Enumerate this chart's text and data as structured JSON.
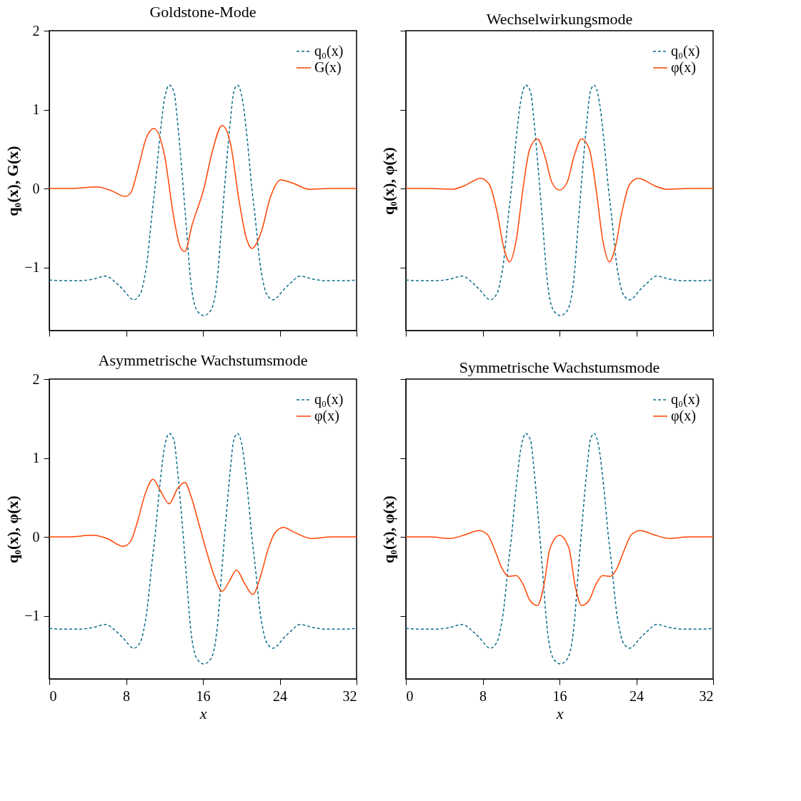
{
  "chart_data": [
    {
      "type": "line",
      "title": "Goldstone-Mode",
      "ylabel": "q₀(x), G(x)",
      "xlim": [
        0,
        32
      ],
      "ylim": [
        -1.8,
        2
      ],
      "xticks": [
        0,
        8,
        16,
        24,
        32
      ],
      "yticks": [
        -1,
        0,
        1,
        2
      ],
      "tick_labels": "y",
      "legend": "top right",
      "grid": false,
      "series": [
        {
          "name": "q₀(x)",
          "color": "#0b6e8c",
          "line_style": "dashed",
          "x": [
            0,
            1.5,
            3,
            4.5,
            5.9,
            6.9,
            7.6,
            8.8,
            9.5,
            9.9,
            10.1,
            10.7,
            11.0,
            11.5,
            11.95,
            12.5,
            13.0,
            13.3,
            13.8,
            14.25,
            14.7,
            15.4,
            16.1,
            16.8,
            17.5,
            17.95,
            18.4,
            18.9,
            19.2,
            19.6,
            20.15,
            20.6,
            21.1,
            21.4,
            22.0,
            22.2,
            22.6,
            23.3,
            24.5,
            25.2,
            26.1,
            27.5,
            29,
            30.5,
            32
          ],
          "values": [
            -1.16,
            -1.17,
            -1.17,
            -1.15,
            -1.11,
            -1.19,
            -1.27,
            -1.41,
            -1.33,
            -1.14,
            -1.0,
            -0.32,
            0,
            0.64,
            1.1,
            1.31,
            1.22,
            0.91,
            0.23,
            -0.45,
            -1.14,
            -1.55,
            -1.61,
            -1.55,
            -1.14,
            -0.45,
            0.23,
            0.91,
            1.22,
            1.31,
            1.1,
            0.64,
            0,
            -0.32,
            -1.0,
            -1.14,
            -1.33,
            -1.41,
            -1.27,
            -1.19,
            -1.11,
            -1.15,
            -1.17,
            -1.17,
            -1.16
          ]
        },
        {
          "name": "G(x)",
          "color": "#ff4500",
          "line_style": "solid",
          "x": [
            0,
            2,
            3.5,
            4.9,
            6.5,
            7.9,
            8.5,
            9.2,
            10.1,
            10.9,
            12.0,
            12.9,
            13.6,
            14.1,
            14.9,
            16.1,
            17.0,
            18.0,
            18.85,
            19.8,
            20.5,
            21.1,
            22.1,
            23.0,
            24.1,
            25.3,
            27.1,
            29.2,
            32
          ],
          "values": [
            0,
            0,
            0.01,
            0.02,
            -0.03,
            -0.1,
            -0.05,
            0.23,
            0.64,
            0.76,
            0.42,
            -0.32,
            -0.73,
            -0.8,
            -0.45,
            0,
            0.48,
            0.8,
            0.58,
            -0.18,
            -0.62,
            -0.76,
            -0.54,
            -0.12,
            0.11,
            0.07,
            -0.01,
            0,
            0
          ]
        }
      ]
    },
    {
      "type": "line",
      "title": "Wechselwirkungsmode",
      "ylabel": "q₀(x), φ(x)",
      "xlim": [
        0,
        32
      ],
      "ylim": [
        -1.8,
        2
      ],
      "xticks": [
        0,
        8,
        16,
        24,
        32
      ],
      "yticks": [
        -1,
        0,
        1,
        2
      ],
      "tick_labels": false,
      "legend": "top right",
      "grid": false,
      "series": [
        {
          "name": "q₀(x)",
          "color": "#0b6e8c",
          "line_style": "dashed",
          "x": [
            0,
            1.5,
            3,
            4.5,
            5.9,
            6.9,
            7.6,
            8.8,
            9.5,
            9.9,
            10.1,
            10.7,
            11.0,
            11.5,
            11.95,
            12.5,
            13.0,
            13.3,
            13.8,
            14.25,
            14.7,
            15.4,
            16.1,
            16.8,
            17.5,
            17.95,
            18.4,
            18.9,
            19.2,
            19.6,
            20.15,
            20.6,
            21.1,
            21.4,
            22.0,
            22.2,
            22.6,
            23.3,
            24.5,
            25.2,
            26.1,
            27.5,
            29,
            30.5,
            32
          ],
          "values": [
            -1.16,
            -1.17,
            -1.17,
            -1.15,
            -1.11,
            -1.19,
            -1.27,
            -1.41,
            -1.33,
            -1.14,
            -1.0,
            -0.32,
            0,
            0.64,
            1.1,
            1.31,
            1.22,
            0.91,
            0.23,
            -0.45,
            -1.14,
            -1.55,
            -1.61,
            -1.55,
            -1.14,
            -0.45,
            0.23,
            0.91,
            1.22,
            1.31,
            1.1,
            0.64,
            0,
            -0.32,
            -1.0,
            -1.14,
            -1.33,
            -1.41,
            -1.27,
            -1.19,
            -1.11,
            -1.15,
            -1.17,
            -1.17,
            -1.16
          ]
        },
        {
          "name": "φ(x)",
          "color": "#ff4500",
          "line_style": "solid",
          "x": [
            0,
            2.5,
            4.8,
            6,
            7.8,
            8.7,
            9.5,
            10.2,
            10.8,
            11.5,
            12.2,
            12.9,
            13.7,
            14.5,
            15.2,
            16.0,
            16.8,
            17.5,
            18.3,
            19.1,
            19.8,
            20.5,
            21.2,
            21.8,
            22.5,
            23.3,
            24.2,
            26,
            27.2,
            29.5,
            32
          ],
          "values": [
            0,
            0,
            -0.01,
            0.03,
            0.13,
            0.05,
            -0.3,
            -0.75,
            -0.93,
            -0.65,
            0,
            0.5,
            0.63,
            0.4,
            0.08,
            -0.02,
            0.08,
            0.4,
            0.63,
            0.5,
            0,
            -0.65,
            -0.93,
            -0.75,
            -0.3,
            0.05,
            0.13,
            0.03,
            -0.01,
            0,
            0
          ]
        }
      ]
    },
    {
      "type": "line",
      "title": "Asymmetrische Wachstumsmode",
      "xlabel": "x",
      "ylabel": "q₀(x), φ(x)",
      "xlim": [
        0,
        32
      ],
      "ylim": [
        -1.8,
        2
      ],
      "xticks": [
        0,
        8,
        16,
        24,
        32
      ],
      "yticks": [
        -1,
        0,
        1,
        2
      ],
      "legend": "top right",
      "grid": false,
      "series": [
        {
          "name": "q₀(x)",
          "color": "#0b6e8c",
          "line_style": "dashed",
          "x": [
            0,
            1.5,
            3,
            4.5,
            5.9,
            6.9,
            7.6,
            8.8,
            9.5,
            9.9,
            10.1,
            10.7,
            11.0,
            11.5,
            11.95,
            12.5,
            13.0,
            13.3,
            13.8,
            14.25,
            14.7,
            15.4,
            16.1,
            16.8,
            17.5,
            17.95,
            18.4,
            18.9,
            19.2,
            19.6,
            20.15,
            20.6,
            21.1,
            21.4,
            22.0,
            22.2,
            22.6,
            23.3,
            24.5,
            25.2,
            26.1,
            27.5,
            29,
            30.5,
            32
          ],
          "values": [
            -1.16,
            -1.17,
            -1.17,
            -1.15,
            -1.11,
            -1.19,
            -1.27,
            -1.41,
            -1.33,
            -1.14,
            -1.0,
            -0.32,
            0,
            0.64,
            1.1,
            1.31,
            1.22,
            0.91,
            0.23,
            -0.45,
            -1.14,
            -1.55,
            -1.61,
            -1.55,
            -1.14,
            -0.45,
            0.23,
            0.91,
            1.22,
            1.31,
            1.1,
            0.64,
            0,
            -0.32,
            -1.0,
            -1.14,
            -1.33,
            -1.41,
            -1.27,
            -1.19,
            -1.11,
            -1.15,
            -1.17,
            -1.17,
            -1.16
          ]
        },
        {
          "name": "φ(x)",
          "color": "#ff4500",
          "line_style": "solid",
          "x": [
            0,
            2,
            4.5,
            6,
            7.7,
            8.5,
            9.2,
            10,
            10.8,
            11.5,
            12.5,
            13.3,
            14.1,
            14.8,
            15.5,
            16.3,
            17.2,
            18.0,
            18.8,
            19.5,
            20.3,
            21.2,
            22.0,
            22.8,
            23.5,
            24.4,
            25.5,
            27.3,
            29.5,
            32
          ],
          "values": [
            0,
            0,
            0.02,
            -0.02,
            -0.12,
            -0.05,
            0.2,
            0.55,
            0.73,
            0.6,
            0.42,
            0.6,
            0.69,
            0.5,
            0.2,
            -0.15,
            -0.5,
            -0.69,
            -0.55,
            -0.42,
            -0.58,
            -0.73,
            -0.5,
            -0.15,
            0.05,
            0.12,
            0.06,
            -0.02,
            0,
            0
          ]
        }
      ]
    },
    {
      "type": "line",
      "title": "Symmetrische Wachstumsmode",
      "xlabel": "x",
      "ylabel": "q₀(x), φ(x)",
      "xlim": [
        0,
        32
      ],
      "ylim": [
        -1.8,
        2
      ],
      "xticks": [
        0,
        8,
        16,
        24,
        32
      ],
      "yticks": [
        -1,
        0,
        1,
        2
      ],
      "tick_labels": "x",
      "legend": "top right",
      "grid": false,
      "series": [
        {
          "name": "q₀(x)",
          "color": "#0b6e8c",
          "line_style": "dashed",
          "x": [
            0,
            1.5,
            3,
            4.5,
            5.9,
            6.9,
            7.6,
            8.8,
            9.5,
            9.9,
            10.1,
            10.7,
            11.0,
            11.5,
            11.95,
            12.5,
            13.0,
            13.3,
            13.8,
            14.25,
            14.7,
            15.4,
            16.1,
            16.8,
            17.5,
            17.95,
            18.4,
            18.9,
            19.2,
            19.6,
            20.15,
            20.6,
            21.1,
            21.4,
            22.0,
            22.2,
            22.6,
            23.3,
            24.5,
            25.2,
            26.1,
            27.5,
            29,
            30.5,
            32
          ],
          "values": [
            -1.16,
            -1.17,
            -1.17,
            -1.15,
            -1.11,
            -1.19,
            -1.27,
            -1.41,
            -1.33,
            -1.14,
            -1.0,
            -0.32,
            0,
            0.64,
            1.1,
            1.31,
            1.22,
            0.91,
            0.23,
            -0.45,
            -1.14,
            -1.55,
            -1.61,
            -1.55,
            -1.14,
            -0.45,
            0.23,
            0.91,
            1.22,
            1.31,
            1.1,
            0.64,
            0,
            -0.32,
            -1.0,
            -1.14,
            -1.33,
            -1.41,
            -1.27,
            -1.19,
            -1.11,
            -1.15,
            -1.17,
            -1.17,
            -1.16
          ]
        },
        {
          "name": "φ(x)",
          "color": "#ff4500",
          "line_style": "solid",
          "x": [
            0,
            2.5,
            4.6,
            6,
            7.6,
            8.5,
            9.3,
            10.1,
            10.7,
            11.5,
            12.2,
            12.9,
            13.7,
            14.4,
            15.0,
            16.0,
            17.0,
            17.6,
            18.3,
            19.1,
            19.8,
            20.5,
            21.3,
            21.9,
            22.7,
            23.5,
            24.4,
            26,
            27.4,
            29.5,
            32
          ],
          "values": [
            0,
            0,
            -0.02,
            0.02,
            0.08,
            0.03,
            -0.18,
            -0.42,
            -0.5,
            -0.49,
            -0.6,
            -0.8,
            -0.87,
            -0.6,
            -0.15,
            0.02,
            -0.15,
            -0.6,
            -0.87,
            -0.8,
            -0.6,
            -0.49,
            -0.5,
            -0.42,
            -0.18,
            0.03,
            0.08,
            0.02,
            -0.02,
            0,
            0
          ]
        }
      ]
    }
  ]
}
